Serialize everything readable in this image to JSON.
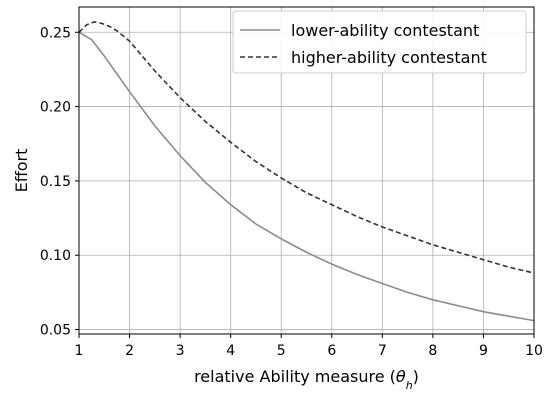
{
  "chart_data": {
    "type": "line",
    "title": "",
    "xlabel_main": "relative Ability measure (",
    "xlabel_symbol": "θ",
    "xlabel_subscript": "h",
    "xlabel_close": ")",
    "ylabel": "Effort",
    "xlim": [
      1,
      10
    ],
    "ylim": [
      0.047,
      0.267
    ],
    "xticks": [
      "1",
      "2",
      "3",
      "4",
      "5",
      "6",
      "7",
      "8",
      "9",
      "10"
    ],
    "yticks": [
      "0.05",
      "0.10",
      "0.15",
      "0.20",
      "0.25"
    ],
    "grid": true,
    "legend_position": "top-right",
    "series": [
      {
        "name": "lower-ability contestant",
        "color": "#8c8c8c",
        "line_style": "solid",
        "x": [
          1,
          1.25,
          1.5,
          1.75,
          2,
          2.5,
          3,
          3.5,
          4,
          4.5,
          5,
          5.5,
          6,
          6.5,
          7,
          7.5,
          8,
          8.5,
          9,
          9.5,
          10
        ],
        "y": [
          0.25,
          0.245,
          0.234,
          0.222,
          0.21,
          0.187,
          0.167,
          0.149,
          0.134,
          0.121,
          0.111,
          0.102,
          0.094,
          0.087,
          0.081,
          0.075,
          0.07,
          0.066,
          0.062,
          0.059,
          0.056
        ]
      },
      {
        "name": "higher-ability contestant",
        "color": "#333333",
        "line_style": "dashed",
        "x": [
          1,
          1.15,
          1.3,
          1.45,
          1.6,
          1.75,
          2,
          2.5,
          3,
          3.5,
          4,
          4.5,
          5,
          5.5,
          6,
          6.5,
          7,
          7.5,
          8,
          8.5,
          9,
          9.5,
          10
        ],
        "y": [
          0.25,
          0.255,
          0.257,
          0.256,
          0.254,
          0.251,
          0.244,
          0.224,
          0.206,
          0.19,
          0.176,
          0.163,
          0.152,
          0.142,
          0.134,
          0.126,
          0.119,
          0.113,
          0.107,
          0.102,
          0.097,
          0.092,
          0.088
        ]
      }
    ]
  }
}
